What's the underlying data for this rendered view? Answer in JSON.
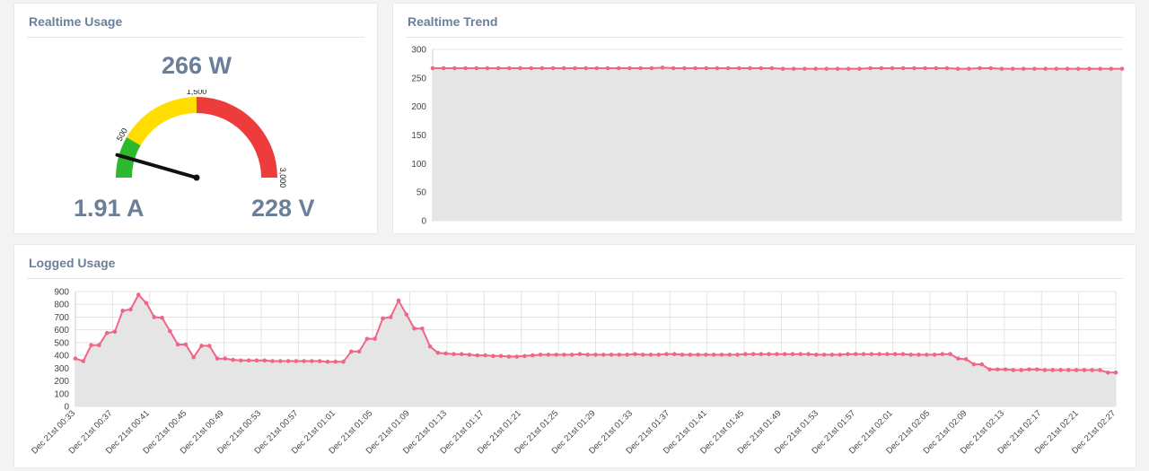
{
  "usage": {
    "title": "Realtime Usage",
    "power": "266 W",
    "current": "1.91 A",
    "voltage": "228 V",
    "gauge": {
      "min": 0,
      "max": 3000,
      "value": 266,
      "bands": [
        {
          "from": 0,
          "to": 500,
          "color": "#2eb82e"
        },
        {
          "from": 500,
          "to": 1500,
          "color": "#ffdd00"
        },
        {
          "from": 1500,
          "to": 3000,
          "color": "#ee3b3b"
        }
      ],
      "tick_labels": [
        {
          "value": 500,
          "text": "500"
        },
        {
          "value": 1500,
          "text": "1,500"
        },
        {
          "value": 3000,
          "text": "3,000"
        }
      ]
    }
  },
  "trend": {
    "title": "Realtime Trend",
    "chart_data": {
      "type": "area",
      "ylim": [
        0,
        300
      ],
      "yticks": [
        0,
        50,
        100,
        150,
        200,
        250,
        300
      ],
      "values": [
        267,
        267,
        267,
        267,
        267,
        267,
        267,
        267,
        267,
        267,
        267,
        267,
        267,
        267,
        267,
        267,
        267,
        267,
        267,
        267,
        267,
        268,
        267,
        267,
        267,
        267,
        267,
        267,
        267,
        267,
        267,
        267,
        266,
        266,
        266,
        266,
        266,
        266,
        266,
        266,
        267,
        267,
        267,
        267,
        267,
        267,
        267,
        267,
        266,
        266,
        267,
        267,
        266,
        266,
        266,
        266,
        266,
        266,
        266,
        266,
        266,
        266,
        266,
        266
      ],
      "line_color": "#ee6688",
      "fill_color": "#e5e5e5"
    }
  },
  "logged": {
    "title": "Logged Usage",
    "chart_data": {
      "type": "area",
      "ylim": [
        0,
        900
      ],
      "yticks": [
        0,
        100,
        200,
        300,
        400,
        500,
        600,
        700,
        800,
        900
      ],
      "xlabels": [
        "Dec 21st 00:33",
        "Dec 21st 00:37",
        "Dec 21st 00:41",
        "Dec 21st 00:45",
        "Dec 21st 00:49",
        "Dec 21st 00:53",
        "Dec 21st 00:57",
        "Dec 21st 01:01",
        "Dec 21st 01:05",
        "Dec 21st 01:09",
        "Dec 21st 01:13",
        "Dec 21st 01:17",
        "Dec 21st 01:21",
        "Dec 21st 01:25",
        "Dec 21st 01:29",
        "Dec 21st 01:33",
        "Dec 21st 01:37",
        "Dec 21st 01:41",
        "Dec 21st 01:45",
        "Dec 21st 01:49",
        "Dec 21st 01:53",
        "Dec 21st 01:57",
        "Dec 21st 02:01",
        "Dec 21st 02:05",
        "Dec 21st 02:09",
        "Dec 21st 02:13",
        "Dec 21st 02:17",
        "Dec 21st 02:21",
        "Dec 21st 02:27"
      ],
      "values": [
        375,
        355,
        480,
        480,
        575,
        585,
        750,
        760,
        875,
        810,
        700,
        695,
        590,
        485,
        485,
        385,
        475,
        475,
        375,
        375,
        365,
        360,
        360,
        360,
        360,
        355,
        355,
        355,
        355,
        355,
        355,
        355,
        350,
        350,
        350,
        430,
        430,
        530,
        530,
        690,
        700,
        830,
        720,
        610,
        610,
        470,
        420,
        415,
        410,
        410,
        405,
        400,
        400,
        395,
        395,
        390,
        390,
        395,
        400,
        405,
        405,
        405,
        405,
        405,
        410,
        405,
        405,
        405,
        405,
        405,
        405,
        410,
        405,
        405,
        405,
        410,
        410,
        405,
        405,
        405,
        405,
        405,
        405,
        405,
        405,
        410,
        410,
        410,
        410,
        410,
        410,
        410,
        410,
        410,
        405,
        405,
        405,
        405,
        410,
        410,
        410,
        410,
        410,
        410,
        410,
        410,
        405,
        405,
        405,
        405,
        410,
        410,
        375,
        370,
        330,
        330,
        290,
        290,
        290,
        285,
        285,
        290,
        290,
        285,
        285,
        285,
        285,
        285,
        285,
        285,
        285,
        265,
        265
      ],
      "line_color": "#ee6688",
      "fill_color": "#e5e5e5"
    }
  }
}
